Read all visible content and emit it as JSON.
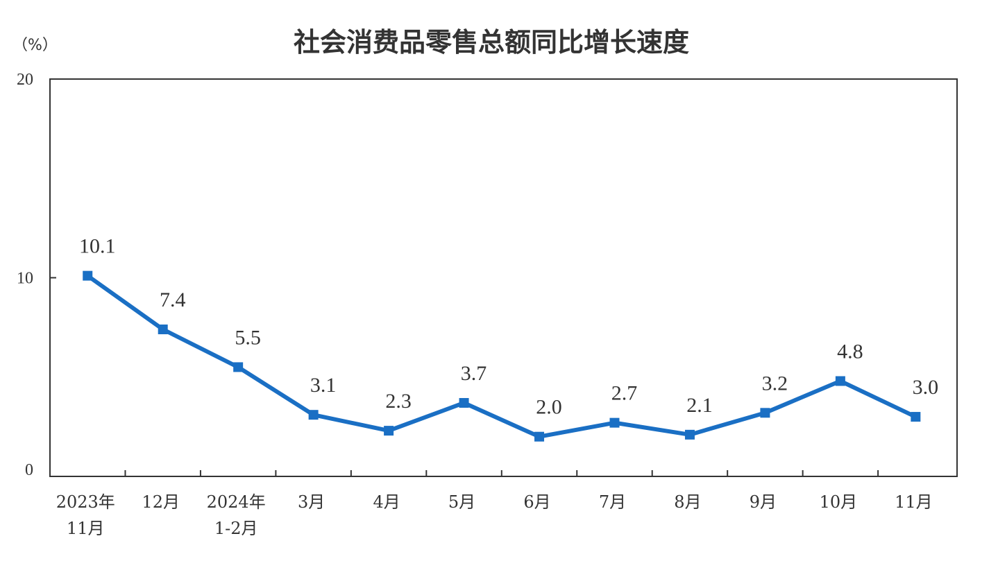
{
  "chart_data": {
    "type": "line",
    "title": "社会消费品零售总额同比增长速度",
    "unit_label": "（%）",
    "ylim": [
      0,
      20
    ],
    "yticks": [
      "0",
      "10",
      "20"
    ],
    "categories": [
      [
        "2023年",
        "11月"
      ],
      [
        "12月"
      ],
      [
        "2024年",
        "1-2月"
      ],
      [
        "3月"
      ],
      [
        "4月"
      ],
      [
        "5月"
      ],
      [
        "6月"
      ],
      [
        "7月"
      ],
      [
        "8月"
      ],
      [
        "9月"
      ],
      [
        "10月"
      ],
      [
        "11月"
      ]
    ],
    "values": [
      10.1,
      7.4,
      5.5,
      3.1,
      2.3,
      3.7,
      2.0,
      2.7,
      2.1,
      3.2,
      4.8,
      3.0
    ],
    "data_labels": [
      "10.1",
      "7.4",
      "5.5",
      "3.1",
      "2.3",
      "3.7",
      "2.0",
      "2.7",
      "2.1",
      "3.2",
      "4.8",
      "3.0"
    ],
    "series_color": "#1a6fc4",
    "grid": false,
    "legend": "none"
  }
}
